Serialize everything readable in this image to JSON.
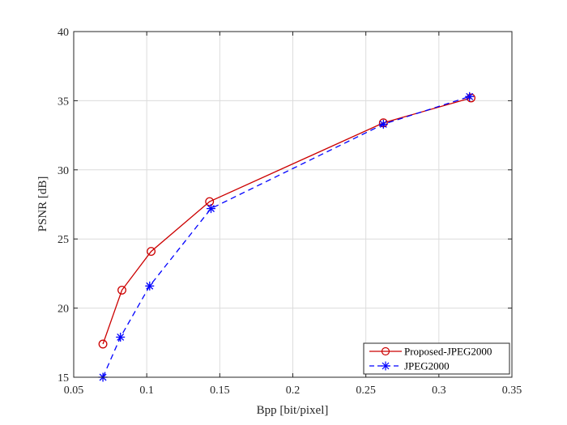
{
  "chart_data": {
    "type": "line",
    "xlabel": "Bpp [bit/pixel]",
    "ylabel": "PSNR [dB]",
    "xlim": [
      0.05,
      0.35
    ],
    "ylim": [
      15,
      40
    ],
    "grid": true,
    "legend_position": "bottom-right",
    "x_ticks": [
      "0.05",
      "0.1",
      "0.15",
      "0.2",
      "0.25",
      "0.3",
      "0.35"
    ],
    "y_ticks": [
      "15",
      "20",
      "25",
      "30",
      "35",
      "40"
    ],
    "series": [
      {
        "name": "Proposed-JPEG2000",
        "color": "#cc0000",
        "line_style": "solid",
        "marker": "circle",
        "x": [
          0.07,
          0.083,
          0.103,
          0.143,
          0.262,
          0.322
        ],
        "y": [
          17.4,
          21.3,
          24.1,
          27.7,
          33.4,
          35.2
        ]
      },
      {
        "name": "JPEG2000",
        "color": "#0000ff",
        "line_style": "dashed",
        "marker": "asterisk",
        "x": [
          0.07,
          0.082,
          0.102,
          0.144,
          0.262,
          0.321
        ],
        "y": [
          15.0,
          17.9,
          21.6,
          27.2,
          33.3,
          35.3
        ]
      }
    ]
  }
}
